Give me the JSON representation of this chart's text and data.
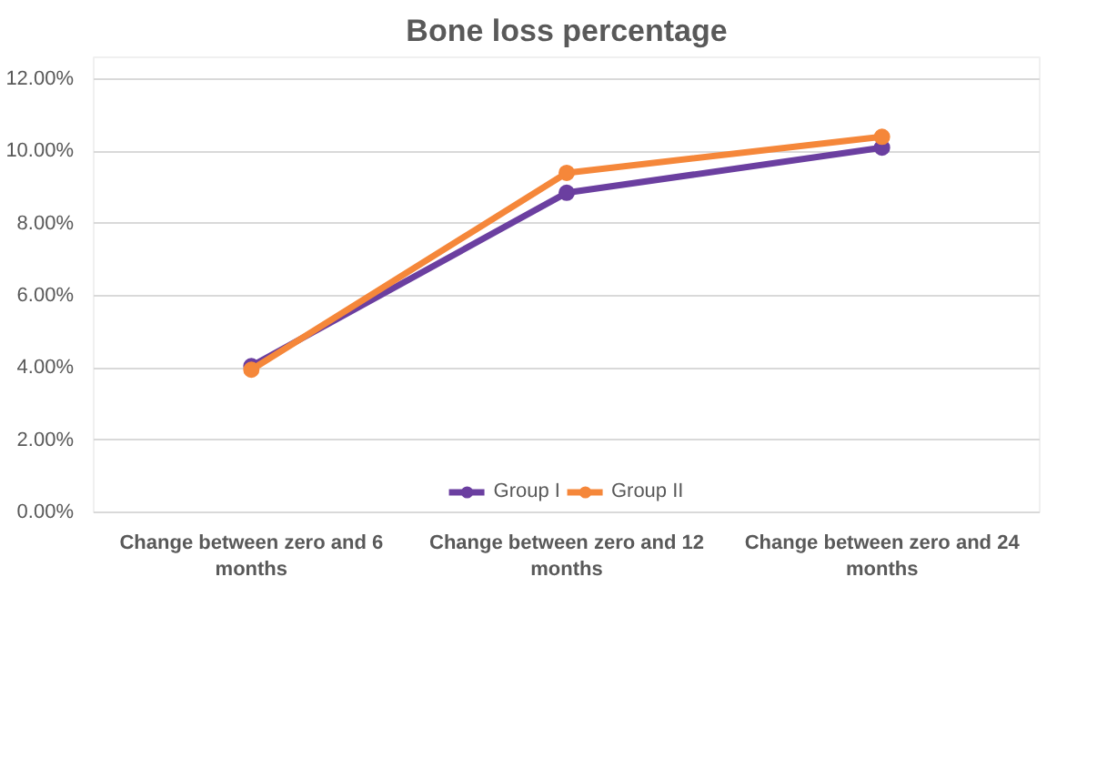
{
  "chart_data": {
    "type": "line",
    "title": "Bone loss percentage",
    "categories": [
      "Change between zero and 6 months",
      "Change between zero and 12 months",
      "Change between zero and 24 months"
    ],
    "series": [
      {
        "name": "Group I",
        "color": "#6b3fa0",
        "values": [
          4.05,
          8.85,
          10.1
        ]
      },
      {
        "name": "Group II",
        "color": "#f5873a",
        "values": [
          3.95,
          9.4,
          10.4
        ]
      }
    ],
    "ylim": [
      0,
      12.6
    ],
    "yticks": [
      {
        "value": 0,
        "label": "0.00%"
      },
      {
        "value": 2,
        "label": "2.00%"
      },
      {
        "value": 4,
        "label": "4.00%"
      },
      {
        "value": 6,
        "label": "6.00%"
      },
      {
        "value": 8,
        "label": "8.00%"
      },
      {
        "value": 10,
        "label": "10.00%"
      },
      {
        "value": 12,
        "label": "12.00%"
      }
    ],
    "grid": "y",
    "legend": "bottom",
    "marker": "circle",
    "line_style": "solid"
  }
}
